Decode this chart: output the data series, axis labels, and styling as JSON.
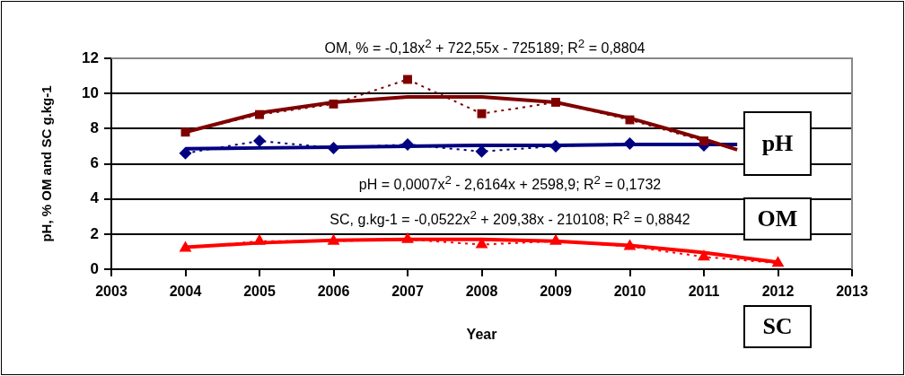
{
  "chart_data": {
    "type": "line",
    "xlabel": "Year",
    "ylabel": "pH, % OM and SC g.kg-1",
    "x": [
      2004,
      2005,
      2006,
      2007,
      2008,
      2009,
      2010,
      2011,
      2012
    ],
    "xlim": [
      2003,
      2013
    ],
    "xticks": [
      2003,
      2004,
      2005,
      2006,
      2007,
      2008,
      2009,
      2010,
      2011,
      2012,
      2013
    ],
    "ylim": [
      0,
      12
    ],
    "yticks": [
      0,
      2,
      4,
      6,
      8,
      10,
      12
    ],
    "grid": "y",
    "legend": false,
    "series": [
      {
        "color": "#800000",
        "marker": "square",
        "line_style": "dotted",
        "values": [
          7.8,
          8.8,
          9.4,
          10.8,
          8.85,
          9.5,
          8.5,
          7.3,
          null
        ]
      },
      {
        "color": "#000080",
        "marker": "diamond",
        "line_style": "dotted",
        "values": [
          6.6,
          7.3,
          6.9,
          7.1,
          6.7,
          7.0,
          7.15,
          7.05,
          null
        ]
      },
      {
        "color": "#ff0000",
        "marker": "triangle",
        "line_style": "dotted",
        "values": [
          1.2,
          1.6,
          1.6,
          1.7,
          1.4,
          1.6,
          1.3,
          0.7,
          0.35
        ]
      },
      {
        "color": "#800000",
        "marker": "none",
        "line_style": "solid",
        "x": [
          2004,
          2005,
          2006,
          2007,
          2008,
          2009,
          2010,
          2011,
          2011.45
        ],
        "values": [
          7.8,
          8.9,
          9.5,
          9.8,
          9.8,
          9.5,
          8.6,
          7.4,
          6.8
        ]
      },
      {
        "color": "#000080",
        "marker": "none",
        "line_style": "solid",
        "x": [
          2004,
          2005,
          2006,
          2007,
          2008,
          2009,
          2010,
          2011,
          2011.45
        ],
        "values": [
          6.85,
          6.9,
          6.95,
          7.0,
          7.05,
          7.05,
          7.1,
          7.1,
          7.1
        ]
      },
      {
        "color": "#ff0000",
        "marker": "none",
        "line_style": "solid",
        "x": [
          2004,
          2005,
          2006,
          2007,
          2008,
          2009,
          2010,
          2011,
          2012
        ],
        "values": [
          1.25,
          1.5,
          1.65,
          1.7,
          1.7,
          1.6,
          1.35,
          0.95,
          0.4
        ]
      }
    ],
    "annotations": [
      "OM, % = -0,18x$^{2}$ + 722,55x - 725189; R$^{2}$ = 0,8804",
      "pH = 0,0007x$^{2}$ - 2,6164x + 2598,9; R$^{2}$ = 0,1732",
      "SC, g.kg-1 = -0,0522x$^{2}$ + 209,38x - 210108; R$^{2}$ = 0,8842",
      "pH",
      "OM",
      "SC"
    ]
  }
}
